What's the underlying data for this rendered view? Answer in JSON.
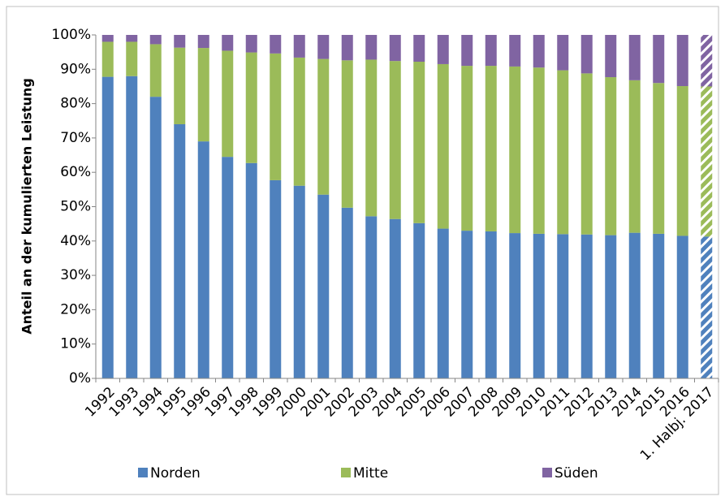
{
  "chart_data": {
    "type": "stacked_bar",
    "y_label": "Anteil an der kumulierten Leistung",
    "categories": [
      "1992",
      "1993",
      "1994",
      "1995",
      "1996",
      "1997",
      "1998",
      "1999",
      "2000",
      "2001",
      "2002",
      "2003",
      "2004",
      "2005",
      "2006",
      "2007",
      "2008",
      "2009",
      "2010",
      "2011",
      "2012",
      "2013",
      "2014",
      "2015",
      "2016",
      "1. Halbj. 2017"
    ],
    "series": [
      {
        "name": "Norden",
        "color": "#4f81bd",
        "values": [
          87.8,
          88,
          82,
          74,
          69,
          64.5,
          62.7,
          57.7,
          56.1,
          53.5,
          49.7,
          47.2,
          46.4,
          45.2,
          43.6,
          43,
          42.8,
          42.3,
          42.1,
          42,
          41.9,
          41.7,
          42.4,
          42.1,
          41.5,
          41.3
        ]
      },
      {
        "name": "Mitte",
        "color": "#9bbb59",
        "values": [
          10.2,
          10,
          15.3,
          22.3,
          27.2,
          30.9,
          32.2,
          36.9,
          37.3,
          39.5,
          42.9,
          45.6,
          46,
          47,
          47.9,
          48,
          48.2,
          48.5,
          48.4,
          47.7,
          46.9,
          46,
          44.4,
          43.9,
          43.6,
          43.7
        ]
      },
      {
        "name": "Süden",
        "color": "#8064a2",
        "values": [
          2,
          2,
          2.7,
          3.7,
          3.8,
          4.6,
          5.1,
          5.4,
          6.6,
          7,
          7.4,
          7.2,
          7.6,
          7.8,
          8.5,
          9,
          9,
          9.2,
          9.5,
          10.3,
          11.2,
          12.3,
          13.2,
          14,
          14.9,
          15
        ]
      }
    ],
    "ylim": [
      0,
      100
    ],
    "yticks": [
      {
        "value": 0,
        "label": "0%"
      },
      {
        "value": 10,
        "label": "10%"
      },
      {
        "value": 20,
        "label": "20%"
      },
      {
        "value": 30,
        "label": "30%"
      },
      {
        "value": 40,
        "label": "40%"
      },
      {
        "value": 50,
        "label": "50%"
      },
      {
        "value": 60,
        "label": "60%"
      },
      {
        "value": 70,
        "label": "70%"
      },
      {
        "value": 80,
        "label": "80%"
      },
      {
        "value": 90,
        "label": "90%"
      },
      {
        "value": 100,
        "label": "100%"
      }
    ],
    "last_bar_hatched": true,
    "legend": "bottom"
  }
}
